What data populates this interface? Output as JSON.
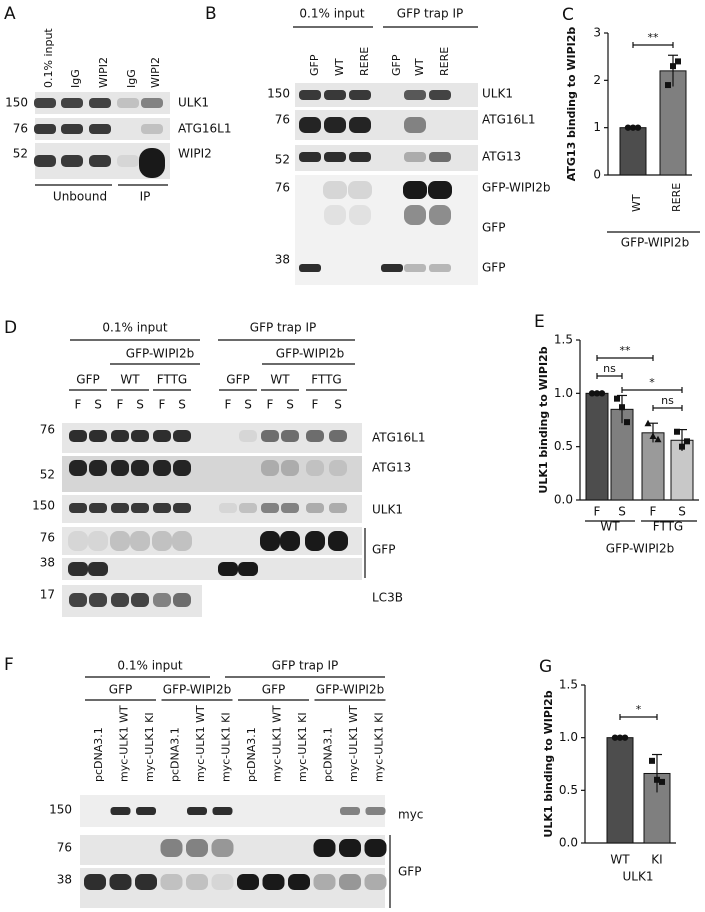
{
  "panels": {
    "A": {
      "letter": "A",
      "lanes": [
        "0.1% input",
        "IgG",
        "WIPI2",
        "IgG",
        "WIPI2"
      ],
      "markers": [
        150,
        76,
        52
      ],
      "bands": [
        "ULK1",
        "ATG16L1",
        "WIPI2"
      ],
      "groups": [
        "Unbound",
        "IP"
      ]
    },
    "B": {
      "letter": "B",
      "groups": [
        "0.1% input",
        "GFP trap IP"
      ],
      "lanes": [
        "GFP",
        "WT",
        "RERE",
        "GFP",
        "WT",
        "RERE"
      ],
      "markers": [
        150,
        76,
        52,
        76,
        38
      ],
      "bands": [
        "ULK1",
        "ATG16L1",
        "ATG13",
        "GFP-WIPI2b",
        "GFP",
        "GFP"
      ]
    },
    "D": {
      "letter": "D",
      "groups": [
        "0.1% input",
        "GFP trap IP"
      ],
      "subgroups": [
        "GFP-WIPI2b",
        "GFP-WIPI2b"
      ],
      "conditions": [
        "GFP",
        "WT",
        "FTTG",
        "GFP",
        "WT",
        "FTTG"
      ],
      "fractions": [
        "F",
        "S",
        "F",
        "S",
        "F",
        "S",
        "F",
        "S",
        "F",
        "S",
        "F",
        "S"
      ],
      "markers": [
        76,
        52,
        150,
        76,
        38,
        17
      ],
      "bands": [
        "ATG16L1",
        "ATG13",
        "ULK1",
        "GFP",
        "LC3B"
      ]
    },
    "F": {
      "letter": "F",
      "groups": [
        "0.1% input",
        "GFP trap IP"
      ],
      "subgroups": [
        "GFP",
        "GFP-WIPI2b",
        "GFP",
        "GFP-WIPI2b"
      ],
      "lanes": [
        "pcDNA3.1",
        "myc-ULK1 WT",
        "myc-ULK1 KI",
        "pcDNA3.1",
        "myc-ULK1 WT",
        "myc-ULK1 KI",
        "pcDNA3.1",
        "myc-ULK1 WT",
        "myc-ULK1 KI",
        "pcDNA3.1",
        "myc-ULK1 WT",
        "myc-ULK1 KI"
      ],
      "markers": [
        150,
        76,
        38
      ],
      "bands": [
        "myc",
        "GFP"
      ]
    }
  },
  "chart_data": [
    {
      "type": "bar",
      "panel": "C",
      "ylabel": "ATG13 binding to WIPI2b",
      "categories": [
        "WT",
        "RERE"
      ],
      "xlabel": "GFP-WIPI2b",
      "values": [
        1,
        2.2
      ],
      "errors": [
        0,
        0.33
      ],
      "points": [
        [
          1,
          1,
          1
        ],
        [
          1.9,
          2.3,
          2.4
        ]
      ],
      "colors": [
        "#4d4d4d",
        "#7f7f7f"
      ],
      "ylim": [
        0,
        3
      ],
      "yticks": [
        0,
        1,
        2,
        3
      ],
      "annotations": [
        "**"
      ]
    },
    {
      "type": "bar",
      "panel": "E",
      "ylabel": "ULK1 binding to WIPI2b",
      "categories": [
        "F",
        "S",
        "F",
        "S"
      ],
      "group_labels": [
        "WT",
        "FTTG"
      ],
      "xlabel": "GFP-WIPI2b",
      "values": [
        1.0,
        0.85,
        0.63,
        0.56
      ],
      "errors": [
        0,
        0.13,
        0.09,
        0.1
      ],
      "points": [
        [
          1,
          1,
          1
        ],
        [
          0.95,
          0.87,
          0.73
        ],
        [
          0.72,
          0.6,
          0.57
        ],
        [
          0.64,
          0.5,
          0.55
        ]
      ],
      "colors": [
        "#4d4d4d",
        "#7f7f7f",
        "#9a9a9a",
        "#c8c8c8"
      ],
      "ylim": [
        0,
        1.5
      ],
      "yticks": [
        {
          "value": 0,
          "label": "0.0"
        },
        0.5,
        {
          "value": 1,
          "label": "1.0"
        },
        1.5
      ],
      "annotations": [
        "**",
        "ns",
        "*",
        "ns"
      ]
    },
    {
      "type": "bar",
      "panel": "G",
      "ylabel": "ULK1 binding to WIPI2b",
      "categories": [
        "WT",
        "KI"
      ],
      "xlabel": "ULK1",
      "values": [
        1.0,
        0.66
      ],
      "errors": [
        0,
        0.18
      ],
      "points": [
        [
          1,
          1,
          1
        ],
        [
          0.78,
          0.6,
          0.58
        ]
      ],
      "colors": [
        "#4d4d4d",
        "#7f7f7f"
      ],
      "ylim": [
        0,
        1.5
      ],
      "yticks": [
        {
          "value": 0,
          "label": "0.0"
        },
        0.5,
        {
          "value": 1,
          "label": "1.0"
        },
        1.5
      ],
      "annotations": [
        "*"
      ]
    }
  ]
}
